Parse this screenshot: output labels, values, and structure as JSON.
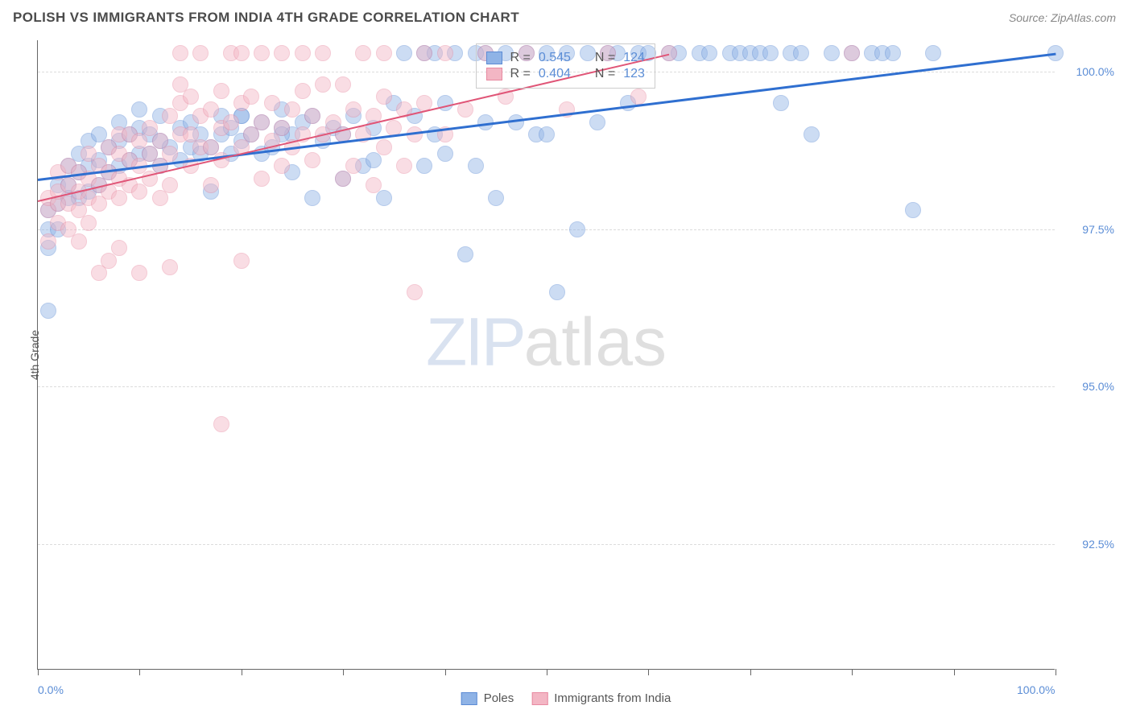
{
  "header": {
    "title": "POLISH VS IMMIGRANTS FROM INDIA 4TH GRADE CORRELATION CHART",
    "source": "Source: ZipAtlas.com"
  },
  "chart": {
    "type": "scatter",
    "ylabel": "4th Grade",
    "xlim": [
      0,
      100
    ],
    "ylim": [
      90.5,
      100.5
    ],
    "xtick_positions": [
      0,
      10,
      20,
      30,
      40,
      50,
      60,
      70,
      80,
      90,
      100
    ],
    "xtick_labels": {
      "0": "0.0%",
      "100": "100.0%"
    },
    "ytick_positions": [
      92.5,
      95.0,
      97.5,
      100.0
    ],
    "ytick_labels": [
      "92.5%",
      "95.0%",
      "97.5%",
      "100.0%"
    ],
    "grid_color": "#dcdcdc",
    "background_color": "#ffffff",
    "marker_radius": 10,
    "marker_opacity": 0.45,
    "watermark": {
      "part1": "ZIP",
      "part2": "atlas"
    },
    "series": [
      {
        "name": "Poles",
        "color_fill": "#8fb3e6",
        "color_stroke": "#5c8bd4",
        "r": 0.545,
        "n": 124,
        "trend": {
          "x1": 0,
          "y1": 98.3,
          "x2": 100,
          "y2": 100.3,
          "width": 2.5,
          "color": "#2f6fd0"
        },
        "points": [
          [
            1,
            96.2
          ],
          [
            1,
            97.2
          ],
          [
            1,
            97.5
          ],
          [
            1,
            97.8
          ],
          [
            2,
            97.5
          ],
          [
            2,
            98.2
          ],
          [
            2,
            97.9
          ],
          [
            3,
            98.2
          ],
          [
            3,
            98.0
          ],
          [
            3,
            98.5
          ],
          [
            4,
            98.0
          ],
          [
            4,
            98.4
          ],
          [
            4,
            98.7
          ],
          [
            5,
            98.1
          ],
          [
            5,
            98.5
          ],
          [
            5,
            98.9
          ],
          [
            6,
            98.2
          ],
          [
            6,
            98.6
          ],
          [
            6,
            99.0
          ],
          [
            7,
            98.4
          ],
          [
            7,
            98.8
          ],
          [
            8,
            98.5
          ],
          [
            8,
            98.9
          ],
          [
            8,
            99.2
          ],
          [
            9,
            98.6
          ],
          [
            9,
            99.0
          ],
          [
            10,
            98.7
          ],
          [
            10,
            99.1
          ],
          [
            10,
            99.4
          ],
          [
            11,
            98.7
          ],
          [
            11,
            99.0
          ],
          [
            12,
            98.5
          ],
          [
            12,
            98.9
          ],
          [
            12,
            99.3
          ],
          [
            13,
            98.8
          ],
          [
            14,
            98.6
          ],
          [
            14,
            99.1
          ],
          [
            15,
            98.8
          ],
          [
            15,
            99.2
          ],
          [
            16,
            98.7
          ],
          [
            16,
            99.0
          ],
          [
            17,
            98.1
          ],
          [
            17,
            98.8
          ],
          [
            18,
            99.0
          ],
          [
            18,
            99.3
          ],
          [
            19,
            98.7
          ],
          [
            19,
            99.1
          ],
          [
            20,
            98.9
          ],
          [
            20,
            99.3
          ],
          [
            21,
            99.0
          ],
          [
            22,
            98.7
          ],
          [
            22,
            99.2
          ],
          [
            23,
            98.8
          ],
          [
            24,
            99.1
          ],
          [
            24,
            99.4
          ],
          [
            25,
            98.4
          ],
          [
            25,
            99.0
          ],
          [
            26,
            99.2
          ],
          [
            27,
            98.0
          ],
          [
            27,
            99.3
          ],
          [
            28,
            98.9
          ],
          [
            29,
            99.1
          ],
          [
            30,
            98.3
          ],
          [
            30,
            99.0
          ],
          [
            31,
            99.3
          ],
          [
            32,
            98.5
          ],
          [
            33,
            99.1
          ],
          [
            34,
            98.0
          ],
          [
            35,
            99.5
          ],
          [
            36,
            100.3
          ],
          [
            37,
            99.3
          ],
          [
            38,
            98.5
          ],
          [
            38,
            100.3
          ],
          [
            39,
            99.0
          ],
          [
            40,
            98.7
          ],
          [
            40,
            99.5
          ],
          [
            41,
            100.3
          ],
          [
            42,
            97.1
          ],
          [
            43,
            98.5
          ],
          [
            44,
            99.2
          ],
          [
            44,
            100.3
          ],
          [
            45,
            98.0
          ],
          [
            46,
            100.3
          ],
          [
            47,
            99.2
          ],
          [
            48,
            100.3
          ],
          [
            49,
            99.0
          ],
          [
            50,
            100.3
          ],
          [
            51,
            96.5
          ],
          [
            52,
            100.3
          ],
          [
            53,
            97.5
          ],
          [
            54,
            100.3
          ],
          [
            55,
            99.2
          ],
          [
            56,
            100.3
          ],
          [
            57,
            100.3
          ],
          [
            58,
            99.5
          ],
          [
            59,
            100.3
          ],
          [
            60,
            100.3
          ],
          [
            62,
            100.3
          ],
          [
            63,
            100.3
          ],
          [
            65,
            100.3
          ],
          [
            66,
            100.3
          ],
          [
            68,
            100.3
          ],
          [
            69,
            100.3
          ],
          [
            70,
            100.3
          ],
          [
            71,
            100.3
          ],
          [
            72,
            100.3
          ],
          [
            73,
            99.5
          ],
          [
            74,
            100.3
          ],
          [
            75,
            100.3
          ],
          [
            76,
            99.0
          ],
          [
            78,
            100.3
          ],
          [
            80,
            100.3
          ],
          [
            82,
            100.3
          ],
          [
            83,
            100.3
          ],
          [
            84,
            100.3
          ],
          [
            86,
            97.8
          ],
          [
            88,
            100.3
          ],
          [
            100,
            100.3
          ],
          [
            20,
            99.3
          ],
          [
            24,
            99.0
          ],
          [
            33,
            98.6
          ],
          [
            39,
            100.3
          ],
          [
            43,
            100.3
          ],
          [
            50,
            99.0
          ]
        ]
      },
      {
        "name": "Immigrants from India",
        "color_fill": "#f3b6c4",
        "color_stroke": "#e88aa1",
        "r": 0.404,
        "n": 123,
        "trend": {
          "x1": 0,
          "y1": 97.95,
          "x2": 62,
          "y2": 100.28,
          "width": 2,
          "color": "#e05577"
        },
        "points": [
          [
            1,
            97.3
          ],
          [
            1,
            97.8
          ],
          [
            1,
            98.0
          ],
          [
            2,
            97.6
          ],
          [
            2,
            97.9
          ],
          [
            2,
            98.1
          ],
          [
            2,
            98.4
          ],
          [
            3,
            97.5
          ],
          [
            3,
            97.9
          ],
          [
            3,
            98.2
          ],
          [
            3,
            98.5
          ],
          [
            4,
            97.3
          ],
          [
            4,
            97.8
          ],
          [
            4,
            98.1
          ],
          [
            4,
            98.4
          ],
          [
            5,
            97.6
          ],
          [
            5,
            98.0
          ],
          [
            5,
            98.3
          ],
          [
            5,
            98.7
          ],
          [
            6,
            96.8
          ],
          [
            6,
            97.9
          ],
          [
            6,
            98.2
          ],
          [
            6,
            98.5
          ],
          [
            7,
            97.0
          ],
          [
            7,
            98.1
          ],
          [
            7,
            98.4
          ],
          [
            7,
            98.8
          ],
          [
            8,
            97.2
          ],
          [
            8,
            98.0
          ],
          [
            8,
            98.3
          ],
          [
            8,
            98.7
          ],
          [
            8,
            99.0
          ],
          [
            9,
            98.2
          ],
          [
            9,
            98.6
          ],
          [
            9,
            99.0
          ],
          [
            10,
            96.8
          ],
          [
            10,
            98.1
          ],
          [
            10,
            98.5
          ],
          [
            10,
            98.9
          ],
          [
            11,
            98.3
          ],
          [
            11,
            98.7
          ],
          [
            11,
            99.1
          ],
          [
            12,
            98.0
          ],
          [
            12,
            98.5
          ],
          [
            12,
            98.9
          ],
          [
            13,
            96.9
          ],
          [
            13,
            98.2
          ],
          [
            13,
            98.7
          ],
          [
            13,
            99.3
          ],
          [
            14,
            99.0
          ],
          [
            14,
            99.5
          ],
          [
            14,
            100.3
          ],
          [
            15,
            98.5
          ],
          [
            15,
            99.0
          ],
          [
            15,
            99.6
          ],
          [
            16,
            98.8
          ],
          [
            16,
            99.3
          ],
          [
            16,
            100.3
          ],
          [
            17,
            98.2
          ],
          [
            17,
            98.8
          ],
          [
            17,
            99.4
          ],
          [
            18,
            94.4
          ],
          [
            18,
            98.6
          ],
          [
            18,
            99.1
          ],
          [
            18,
            99.7
          ],
          [
            19,
            100.3
          ],
          [
            19,
            99.2
          ],
          [
            20,
            97.0
          ],
          [
            20,
            98.8
          ],
          [
            20,
            99.5
          ],
          [
            20,
            100.3
          ],
          [
            21,
            99.0
          ],
          [
            21,
            99.6
          ],
          [
            22,
            98.3
          ],
          [
            22,
            99.2
          ],
          [
            22,
            100.3
          ],
          [
            23,
            98.9
          ],
          [
            23,
            99.5
          ],
          [
            24,
            98.5
          ],
          [
            24,
            99.1
          ],
          [
            24,
            100.3
          ],
          [
            25,
            98.8
          ],
          [
            25,
            99.4
          ],
          [
            26,
            99.0
          ],
          [
            26,
            99.7
          ],
          [
            26,
            100.3
          ],
          [
            27,
            98.6
          ],
          [
            27,
            99.3
          ],
          [
            28,
            99.0
          ],
          [
            28,
            99.8
          ],
          [
            28,
            100.3
          ],
          [
            29,
            99.2
          ],
          [
            30,
            98.3
          ],
          [
            30,
            99.0
          ],
          [
            30,
            99.8
          ],
          [
            31,
            98.5
          ],
          [
            31,
            99.4
          ],
          [
            32,
            99.0
          ],
          [
            32,
            100.3
          ],
          [
            33,
            98.2
          ],
          [
            33,
            99.3
          ],
          [
            34,
            98.8
          ],
          [
            34,
            99.6
          ],
          [
            34,
            100.3
          ],
          [
            35,
            99.1
          ],
          [
            36,
            98.5
          ],
          [
            36,
            99.4
          ],
          [
            37,
            96.5
          ],
          [
            37,
            99.0
          ],
          [
            38,
            99.5
          ],
          [
            38,
            100.3
          ],
          [
            40,
            99.0
          ],
          [
            40,
            100.3
          ],
          [
            42,
            99.4
          ],
          [
            44,
            100.3
          ],
          [
            46,
            99.6
          ],
          [
            48,
            100.3
          ],
          [
            52,
            99.4
          ],
          [
            56,
            100.3
          ],
          [
            59,
            99.6
          ],
          [
            62,
            100.3
          ],
          [
            80,
            100.3
          ],
          [
            14,
            99.8
          ]
        ]
      }
    ],
    "legend_top": {
      "r_label": "R =",
      "n_label": "N ="
    },
    "legend_bottom_labels": [
      "Poles",
      "Immigrants from India"
    ]
  }
}
